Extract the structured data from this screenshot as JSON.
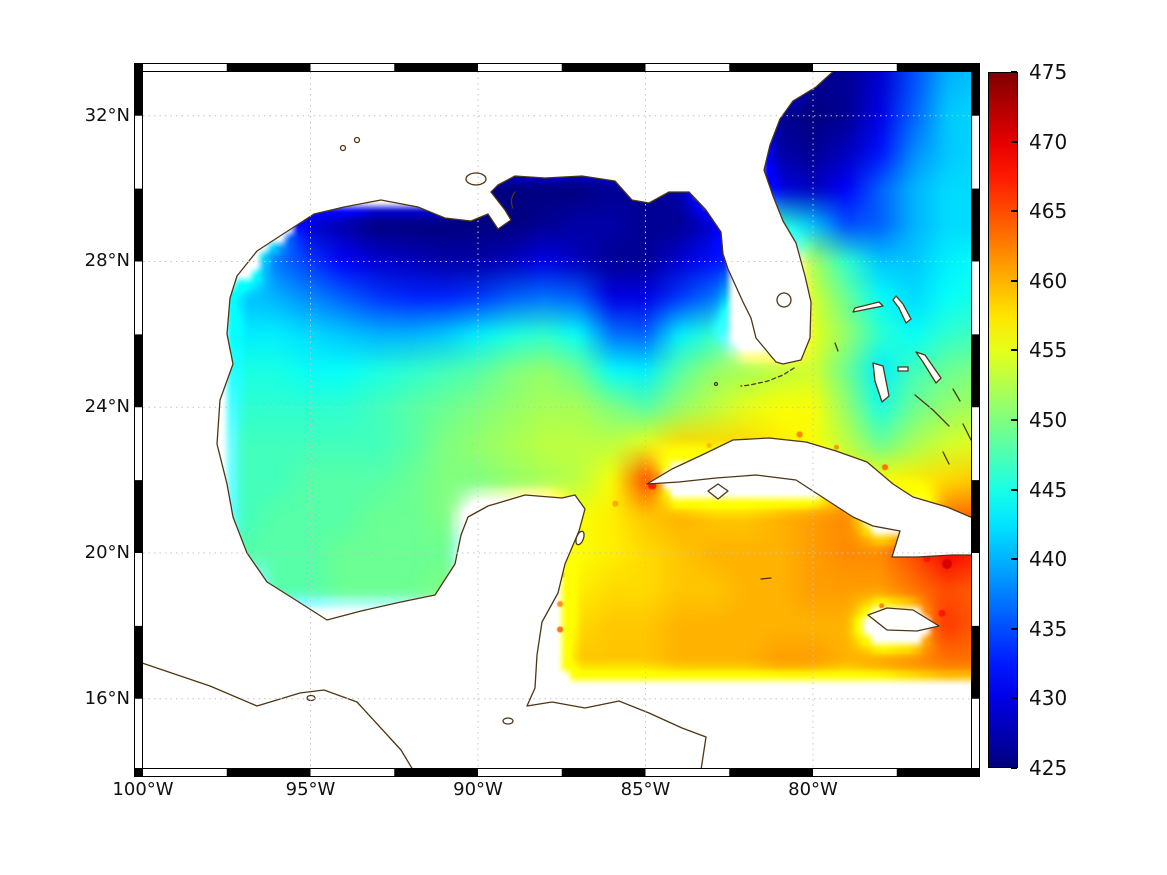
{
  "figure": {
    "background": "#ffffff"
  },
  "axes": {
    "x_tick_labels": [
      "100°W",
      "95°W",
      "90°W",
      "85°W",
      "80°W"
    ],
    "x_tick_lons": [
      -100,
      -95,
      -90,
      -85,
      -80
    ],
    "y_tick_labels": [
      "32°N",
      "28°N",
      "24°N",
      "20°N",
      "16°N"
    ],
    "y_tick_lats": [
      32,
      28,
      24,
      20,
      16
    ]
  },
  "colorbar": {
    "tick_labels": [
      "475",
      "470",
      "465",
      "460",
      "455",
      "450",
      "445",
      "440",
      "435",
      "430",
      "425"
    ],
    "tick_values": [
      475,
      470,
      465,
      460,
      455,
      450,
      445,
      440,
      435,
      430,
      425
    ],
    "min": 425,
    "max": 475,
    "colormap": "jet"
  },
  "chart_data": {
    "type": "heatmap",
    "title": "",
    "region": "Gulf of Mexico / NW Caribbean",
    "lon_range": [
      -100,
      -75.3
    ],
    "lat_range": [
      14.1,
      33.2
    ],
    "value_range": [
      425,
      475
    ],
    "colors": {
      "coastline": "#4d3615",
      "gridline": "#c4c4c4",
      "frame": "#000000",
      "missing": "#ffffff"
    },
    "grid": {
      "lons": [
        -100,
        -99,
        -98,
        -97,
        -96,
        -95,
        -94,
        -93,
        -92,
        -91,
        -90,
        -89,
        -88,
        -87,
        -86,
        -85,
        -84,
        -83,
        -82,
        -81,
        -80,
        -79,
        -78,
        -77,
        -76,
        -75
      ],
      "lats": [
        33,
        32,
        31,
        30,
        29,
        28,
        27,
        26,
        25,
        24,
        23,
        22,
        21,
        20,
        19,
        18,
        17,
        16,
        15,
        14
      ],
      "values": [
        [
          null,
          null,
          null,
          null,
          null,
          null,
          null,
          null,
          null,
          null,
          null,
          null,
          null,
          null,
          null,
          null,
          null,
          null,
          null,
          null,
          426,
          426,
          429,
          435,
          440,
          441
        ],
        [
          null,
          null,
          null,
          null,
          null,
          null,
          null,
          null,
          null,
          null,
          null,
          null,
          null,
          null,
          null,
          null,
          null,
          null,
          null,
          426,
          425,
          426,
          430,
          436,
          441,
          442
        ],
        [
          null,
          null,
          null,
          null,
          null,
          null,
          null,
          null,
          null,
          null,
          null,
          null,
          null,
          null,
          null,
          null,
          null,
          null,
          null,
          427,
          426,
          428,
          432,
          438,
          441,
          442
        ],
        [
          null,
          null,
          null,
          null,
          null,
          null,
          null,
          null,
          null,
          null,
          425,
          425,
          425,
          425,
          426,
          426,
          427,
          null,
          null,
          430,
          428,
          431,
          436,
          440,
          442,
          442
        ],
        [
          null,
          null,
          null,
          null,
          null,
          429,
          427,
          425,
          425,
          425,
          425,
          425,
          426,
          427,
          427,
          426,
          426,
          429,
          null,
          446,
          441,
          435,
          436,
          440,
          442,
          442
        ],
        [
          null,
          null,
          null,
          null,
          437,
          434,
          431,
          429,
          428,
          427,
          427,
          428,
          430,
          428,
          426,
          426,
          429,
          432,
          null,
          null,
          452,
          446,
          441,
          441,
          443,
          444
        ],
        [
          null,
          null,
          null,
          441,
          440,
          438,
          436,
          434,
          433,
          433,
          434,
          436,
          437,
          436,
          430,
          430,
          434,
          437,
          null,
          null,
          454,
          449,
          444,
          442,
          444,
          445
        ],
        [
          null,
          null,
          null,
          443,
          443,
          442,
          441,
          440,
          440,
          441,
          443,
          445,
          446,
          444,
          437,
          436,
          443,
          446,
          null,
          null,
          455,
          451,
          446,
          444,
          446,
          447
        ],
        [
          null,
          null,
          null,
          445,
          445,
          444,
          444,
          445,
          446,
          447,
          448,
          450,
          451,
          449,
          444,
          443,
          448,
          451,
          452,
          453,
          454,
          449,
          443,
          447,
          449,
          450
        ],
        [
          null,
          null,
          null,
          446,
          446,
          446,
          446,
          447,
          448,
          449,
          450,
          451,
          452,
          452,
          450,
          448,
          451,
          453,
          455,
          456,
          456,
          451,
          445,
          449,
          451,
          452
        ],
        [
          null,
          null,
          null,
          447,
          447,
          447,
          447,
          447,
          448,
          450,
          451,
          452,
          453,
          453,
          453,
          455,
          458,
          458,
          458,
          457,
          456,
          453,
          449,
          452,
          454,
          455
        ],
        [
          null,
          null,
          null,
          447,
          447,
          448,
          448,
          448,
          449,
          450,
          450,
          451,
          452,
          453,
          456,
          465,
          null,
          null,
          null,
          null,
          null,
          457,
          456,
          457,
          458,
          459
        ],
        [
          null,
          null,
          null,
          447,
          448,
          448,
          448,
          449,
          449,
          450,
          null,
          null,
          null,
          456,
          457,
          459,
          460,
          459,
          459,
          460,
          461,
          462,
          null,
          null,
          463,
          464
        ],
        [
          null,
          null,
          null,
          448,
          448,
          448,
          449,
          449,
          449,
          449,
          null,
          null,
          null,
          456,
          457,
          458,
          459,
          460,
          460,
          460,
          461,
          462,
          462,
          465,
          469,
          467
        ],
        [
          null,
          null,
          null,
          null,
          448,
          448,
          449,
          449,
          449,
          450,
          null,
          null,
          null,
          457,
          458,
          458,
          459,
          459,
          460,
          460,
          461,
          461,
          461,
          463,
          465,
          464
        ],
        [
          null,
          null,
          null,
          null,
          null,
          null,
          null,
          null,
          null,
          null,
          null,
          null,
          null,
          458,
          459,
          459,
          460,
          460,
          460,
          460,
          460,
          460,
          null,
          null,
          466,
          464
        ],
        [
          null,
          null,
          null,
          null,
          null,
          null,
          null,
          null,
          null,
          null,
          null,
          null,
          null,
          459,
          459,
          459,
          460,
          460,
          460,
          461,
          461,
          460,
          461,
          462,
          463,
          463
        ],
        [
          null,
          null,
          null,
          null,
          null,
          null,
          null,
          null,
          null,
          null,
          null,
          null,
          null,
          null,
          null,
          null,
          null,
          null,
          null,
          null,
          null,
          null,
          null,
          null,
          null,
          null
        ],
        [
          null,
          null,
          null,
          null,
          null,
          null,
          null,
          null,
          null,
          null,
          null,
          null,
          null,
          null,
          null,
          null,
          null,
          null,
          null,
          null,
          null,
          null,
          null,
          null,
          null,
          null
        ],
        [
          null,
          null,
          null,
          null,
          null,
          null,
          null,
          null,
          null,
          null,
          null,
          null,
          null,
          null,
          null,
          null,
          null,
          null,
          null,
          null,
          null,
          null,
          null,
          null,
          null,
          null
        ]
      ]
    },
    "hotspots": [
      {
        "lon": -84.8,
        "lat": 21.85,
        "v": 468,
        "r": 4
      },
      {
        "lon": -80.4,
        "lat": 23.25,
        "v": 463,
        "r": 3
      },
      {
        "lon": -77.85,
        "lat": 22.35,
        "v": 464,
        "r": 3
      },
      {
        "lon": -79.3,
        "lat": 22.9,
        "v": 462,
        "r": 2.5
      },
      {
        "lon": -76.0,
        "lat": 19.7,
        "v": 471,
        "r": 5
      },
      {
        "lon": -76.6,
        "lat": 19.85,
        "v": 468,
        "r": 3.5
      },
      {
        "lon": -75.5,
        "lat": 20.9,
        "v": 466,
        "r": 3
      },
      {
        "lon": -76.15,
        "lat": 18.35,
        "v": 468,
        "r": 3.5
      },
      {
        "lon": -77.95,
        "lat": 18.55,
        "v": 463,
        "r": 2.5
      },
      {
        "lon": -87.55,
        "lat": 18.6,
        "v": 462,
        "r": 3
      },
      {
        "lon": -87.5,
        "lat": 19.4,
        "v": 459,
        "r": 3
      },
      {
        "lon": -87.55,
        "lat": 17.9,
        "v": 464,
        "r": 3
      },
      {
        "lon": -85.9,
        "lat": 21.35,
        "v": 461,
        "r": 3
      },
      {
        "lon": -83.1,
        "lat": 22.95,
        "v": 460,
        "r": 2.5
      }
    ]
  }
}
